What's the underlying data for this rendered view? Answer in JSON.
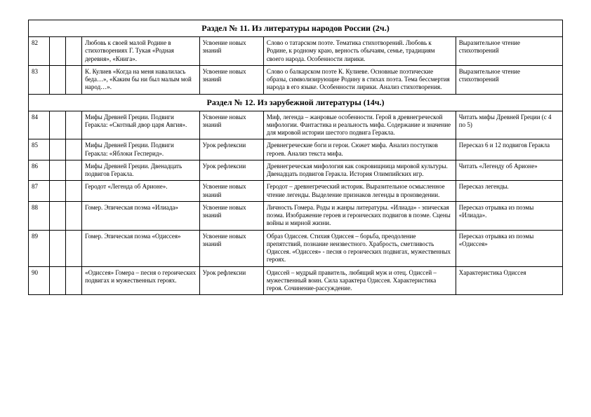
{
  "section1": {
    "title": "Раздел № 11. Из литературы народов России (2ч.)"
  },
  "section2": {
    "title": "Раздел № 12. Из зарубежной литературы (14ч.)"
  },
  "rows": {
    "r82": {
      "num": "82",
      "topic": "Любовь к своей малой Родине в стихотворениях Г. Тукая «Родная деревня», «Книга».",
      "type": "Усвоение новых знаний",
      "desc": "Слово о татарском поэте. Тематика стихотворений. Любовь к Родине, к родному краю, верность обычаям, семье, традициям своего народа. Особенности лирики.",
      "hw": "Выразительное чтение стихотворений"
    },
    "r83": {
      "num": "83",
      "topic": "К. Кулиев «Когда на меня навалилась беда…», «Каким бы ни был малым мой народ…».",
      "type": "Усвоение новых знаний",
      "desc": "Слово о балкарском поэте К. Кулиеве. Основные поэтические образы, символизирующие Родину в стихах поэта. Тема бессмертия народа в его языке. Особенности лирики. Анализ стихотворения.",
      "hw": "Выразительное чтение стихотворений"
    },
    "r84": {
      "num": "84",
      "topic": "Мифы Древней Греции. Подвиги Геракла: «Скотный двор царя Авгия».",
      "type": "Усвоение новых знаний",
      "desc": "Миф, легенда – жанровые особенности. Герой в древнегреческой мифологии. Фантастика и реальность мифа. Содержание и значение для мировой истории шестого подвига Геракла.",
      "hw": "Читать мифы Древней Греции (с 4 по 5)"
    },
    "r85": {
      "num": "85",
      "topic": "Мифы Древней Греции. Подвиги Геракла: «Яблоки Гесперид».",
      "type": "Урок рефлексии",
      "desc": "Древнегреческие боги и герои. Сюжет мифа. Анализ поступков героев. Анализ текста мифа.",
      "hw": "Пересказ 6 и 12 подвигов Геракла"
    },
    "r86": {
      "num": "86",
      "topic": "Мифы Древней Греции. Двенадцать подвигов Геракла.",
      "type": "Урок рефлексии",
      "desc": "Древнегреческая мифология как сокровищница мировой культуры. Двенадцать подвигов Геракла. История Олимпийских игр.",
      "hw": "Читать «Легенду об Арионе»"
    },
    "r87": {
      "num": "87",
      "topic": "Геродот «Легенда об Арионе».",
      "type": "Усвоение новых знаний",
      "desc": "Геродот – древнегреческий историк. Выразительное осмысленное чтение легенды. Выделение признаков легенды в произведении.",
      "hw": "Пересказ легенды."
    },
    "r88": {
      "num": "88",
      "topic": "Гомер. Эпическая поэма «Илиада»",
      "type": "Усвоение новых знаний",
      "desc": "Личность Гомера. Роды и жанры литературы. «Илиада» - эпическая поэма. Изображение героев и героических подвигов в поэме. Сцены войны и мирной жизни.",
      "hw": "Пересказ отрывка из поэмы «Илиада»."
    },
    "r89": {
      "num": "89",
      "topic": "Гомер. Эпическая поэма «Одиссея»",
      "type": "Усвоение новых знаний",
      "desc": "Образ Одиссея. Стихия Одиссея – борьба, преодоление препятствий, познание неизвестного. Храбрость, сметливость Одиссея. «Одиссея» - песня о героических подвигах, мужественных героях.",
      "hw": "Пересказ отрывка из поэмы «Одиссея»"
    },
    "r90": {
      "num": "90",
      "topic": "«Одиссея» Гомера – песня о героических подвигах и мужественных героях.",
      "type": "Урок рефлексии",
      "desc": "Одиссей – мудрый правитель, любящий муж и отец. Одиссей – мужественный воин. Сила характера Одиссея. Характеристика героя. Сочинение-рассуждение.",
      "hw": "Характеристика Одиссея"
    }
  }
}
